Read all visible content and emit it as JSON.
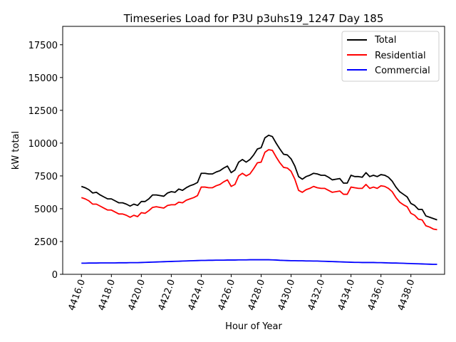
{
  "chart_data": {
    "type": "line",
    "title": "Timeseries Load for P3U p3uhs19_1247  Day 185",
    "xlabel": "Hour of Year",
    "ylabel": "kW total",
    "xlim": [
      4414.75,
      4440.25
    ],
    "ylim": [
      0,
      18900
    ],
    "x_ticks": [
      4416,
      4418,
      4420,
      4422,
      4424,
      4426,
      4428,
      4430,
      4432,
      4434,
      4436,
      4438
    ],
    "x_tick_labels": [
      "4416.0",
      "4418.0",
      "4420.0",
      "4422.0",
      "4424.0",
      "4426.0",
      "4428.0",
      "4430.0",
      "4432.0",
      "4434.0",
      "4436.0",
      "4438.0"
    ],
    "y_ticks": [
      0,
      2500,
      5000,
      7500,
      10000,
      12500,
      15000,
      17500
    ],
    "y_tick_labels": [
      "0",
      "2500",
      "5000",
      "7500",
      "10000",
      "12500",
      "15000",
      "17500"
    ],
    "legend_position": "top-right",
    "x_start": 4416,
    "x_step": 0.25,
    "series": [
      {
        "name": "Total",
        "color": "#000000",
        "values": [
          6700,
          6600,
          6450,
          6200,
          6250,
          6050,
          5900,
          5750,
          5750,
          5600,
          5450,
          5450,
          5350,
          5200,
          5350,
          5250,
          5550,
          5550,
          5750,
          6050,
          6050,
          6000,
          5950,
          6200,
          6300,
          6250,
          6500,
          6400,
          6600,
          6750,
          6850,
          7000,
          7700,
          7700,
          7650,
          7650,
          7800,
          7900,
          8100,
          8250,
          7750,
          7950,
          8550,
          8750,
          8550,
          8750,
          9100,
          9550,
          9650,
          10400,
          10600,
          10500,
          10000,
          9550,
          9150,
          9100,
          8800,
          8250,
          7450,
          7250,
          7450,
          7550,
          7700,
          7650,
          7550,
          7550,
          7400,
          7200,
          7250,
          7300,
          6950,
          6950,
          7550,
          7450,
          7450,
          7400,
          7750,
          7450,
          7550,
          7450,
          7600,
          7550,
          7400,
          7100,
          6650,
          6300,
          6100,
          5900,
          5400,
          5250,
          4950,
          4950,
          4450,
          4350,
          4250,
          4150
        ]
      },
      {
        "name": "Residential",
        "color": "#ff0000",
        "values": [
          5850,
          5750,
          5600,
          5350,
          5350,
          5200,
          5050,
          4900,
          4900,
          4750,
          4600,
          4600,
          4500,
          4350,
          4500,
          4400,
          4700,
          4650,
          4850,
          5100,
          5150,
          5100,
          5050,
          5250,
          5300,
          5300,
          5500,
          5450,
          5650,
          5750,
          5850,
          6000,
          6650,
          6650,
          6600,
          6600,
          6750,
          6850,
          7050,
          7200,
          6700,
          6850,
          7500,
          7700,
          7500,
          7650,
          8050,
          8500,
          8550,
          9300,
          9500,
          9450,
          8950,
          8500,
          8150,
          8100,
          7850,
          7250,
          6400,
          6250,
          6450,
          6550,
          6700,
          6600,
          6550,
          6550,
          6400,
          6250,
          6300,
          6350,
          6100,
          6100,
          6650,
          6600,
          6550,
          6550,
          6850,
          6550,
          6650,
          6550,
          6750,
          6700,
          6550,
          6300,
          5850,
          5500,
          5300,
          5150,
          4650,
          4500,
          4200,
          4150,
          3700,
          3600,
          3450,
          3400
        ]
      },
      {
        "name": "Commercial",
        "color": "#0000ff",
        "values": [
          850,
          850,
          860,
          860,
          860,
          870,
          870,
          870,
          870,
          870,
          880,
          880,
          880,
          890,
          890,
          890,
          900,
          910,
          920,
          930,
          940,
          950,
          960,
          970,
          980,
          990,
          1000,
          1010,
          1020,
          1030,
          1040,
          1050,
          1060,
          1060,
          1070,
          1070,
          1080,
          1080,
          1080,
          1090,
          1090,
          1090,
          1100,
          1100,
          1100,
          1110,
          1110,
          1110,
          1110,
          1110,
          1110,
          1100,
          1090,
          1070,
          1060,
          1050,
          1040,
          1040,
          1030,
          1030,
          1020,
          1020,
          1010,
          1010,
          1000,
          990,
          980,
          970,
          960,
          950,
          940,
          930,
          920,
          910,
          910,
          900,
          900,
          900,
          900,
          890,
          890,
          880,
          870,
          860,
          860,
          850,
          840,
          830,
          820,
          810,
          800,
          790,
          780,
          770,
          760,
          760
        ]
      }
    ]
  }
}
